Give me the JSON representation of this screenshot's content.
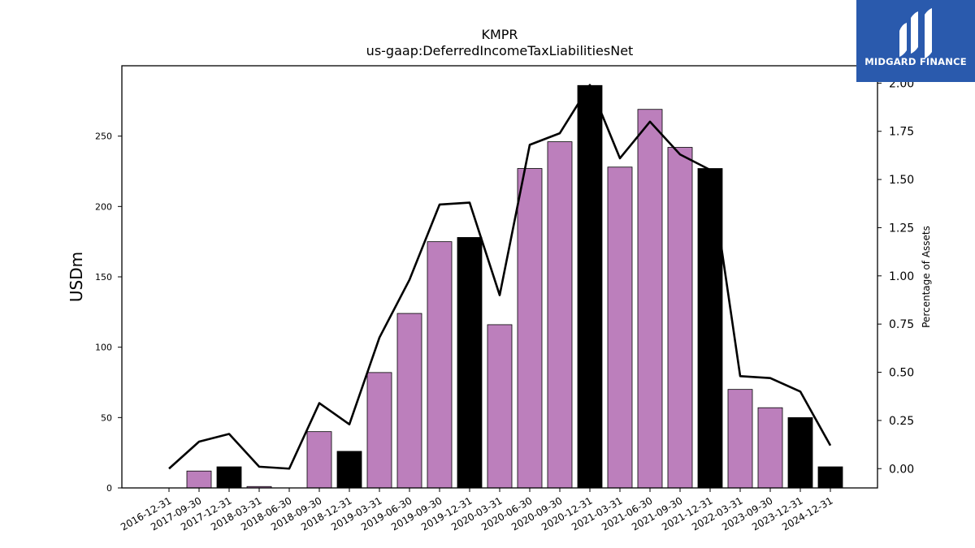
{
  "logo": {
    "text": "MIDGARD FINANCE",
    "color": "#2a5aad"
  },
  "chart_data": {
    "type": "bar",
    "title": "KMPR",
    "subtitle": "us-gaap:DeferredIncomeTaxLiabilitiesNet",
    "ylabel": "USDm",
    "y2label": "Percentage of Assets",
    "ylim": [
      0,
      300
    ],
    "y2lim": [
      -0.1,
      2.09
    ],
    "yticks": [
      0,
      50,
      100,
      150,
      200,
      250
    ],
    "y2ticks": [
      "0.00",
      "0.25",
      "0.50",
      "0.75",
      "1.00",
      "1.25",
      "1.50",
      "1.75",
      "2.00"
    ],
    "categories": [
      "2016-12-31",
      "2017-09-30",
      "2017-12-31",
      "2018-03-31",
      "2018-06-30",
      "2018-09-30",
      "2018-12-31",
      "2019-03-31",
      "2019-06-30",
      "2019-09-30",
      "2019-12-31",
      "2020-03-31",
      "2020-06-30",
      "2020-09-30",
      "2020-12-31",
      "2021-03-31",
      "2021-06-30",
      "2021-09-30",
      "2021-12-31",
      "2022-03-31",
      "2023-09-30",
      "2023-12-31",
      "2024-12-31"
    ],
    "series": [
      {
        "values": [
          0,
          12,
          15,
          1,
          0,
          40,
          26,
          82,
          124,
          175,
          178,
          116,
          227,
          246,
          286,
          228,
          269,
          242,
          227,
          70,
          57,
          50,
          15
        ],
        "colors": [
          "#bc7fbc",
          "#bc7fbc",
          "#000000",
          "#bc7fbc",
          "#bc7fbc",
          "#bc7fbc",
          "#000000",
          "#bc7fbc",
          "#bc7fbc",
          "#bc7fbc",
          "#000000",
          "#bc7fbc",
          "#bc7fbc",
          "#bc7fbc",
          "#000000",
          "#bc7fbc",
          "#bc7fbc",
          "#bc7fbc",
          "#000000",
          "#bc7fbc",
          "#bc7fbc",
          "#000000",
          "#000000"
        ]
      },
      {
        "axis": "right",
        "type": "line",
        "color": "#000000",
        "values": [
          0.0,
          0.14,
          0.18,
          0.01,
          0.0,
          0.34,
          0.23,
          0.68,
          0.98,
          1.37,
          1.38,
          0.9,
          1.68,
          1.74,
          1.99,
          1.61,
          1.8,
          1.63,
          1.55,
          0.48,
          0.47,
          0.4,
          0.12
        ]
      }
    ],
    "grid": false,
    "legend": "none"
  }
}
